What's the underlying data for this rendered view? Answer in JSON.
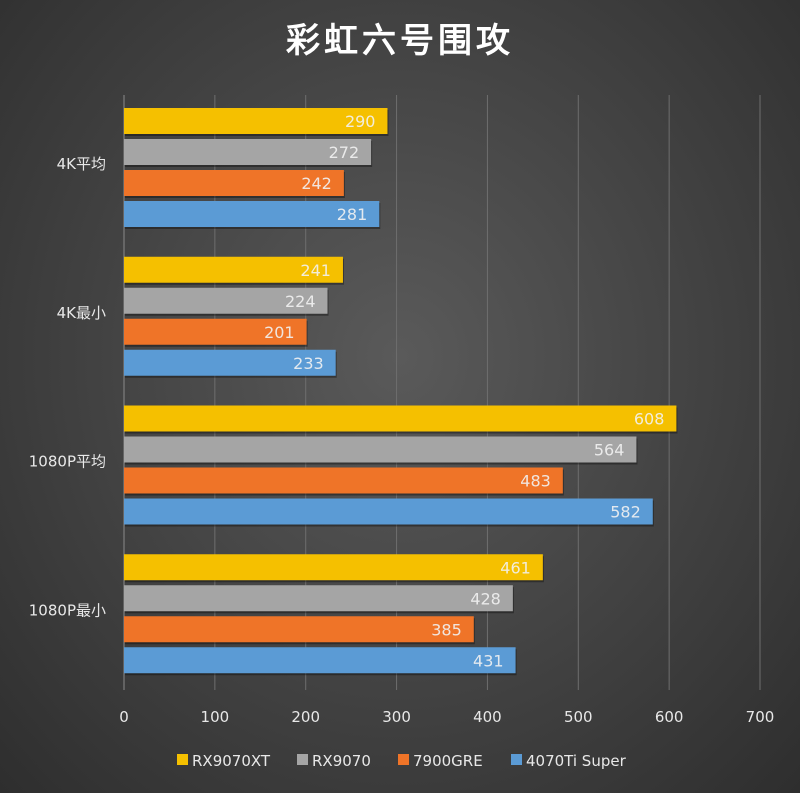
{
  "chart_data": {
    "type": "bar",
    "orientation": "horizontal",
    "title": "彩虹六号围攻",
    "categories": [
      "4K平均",
      "4K最小",
      "1080P平均",
      "1080P最小"
    ],
    "series": [
      {
        "name": "RX9070XT",
        "color": "#f5c000",
        "values": [
          290,
          241,
          608,
          461
        ]
      },
      {
        "name": "RX9070",
        "color": "#a5a5a5",
        "values": [
          272,
          224,
          564,
          428
        ]
      },
      {
        "name": "7900GRE",
        "color": "#ef7428",
        "values": [
          242,
          201,
          483,
          385
        ]
      },
      {
        "name": "4070Ti Super",
        "color": "#5b9bd5",
        "values": [
          281,
          233,
          582,
          431
        ]
      }
    ],
    "xlim": [
      0,
      700
    ],
    "xticks": [
      "0",
      "100",
      "200",
      "300",
      "400",
      "500",
      "600",
      "700"
    ],
    "grid": true,
    "legend": "bottom",
    "xlabel": "",
    "ylabel": ""
  }
}
